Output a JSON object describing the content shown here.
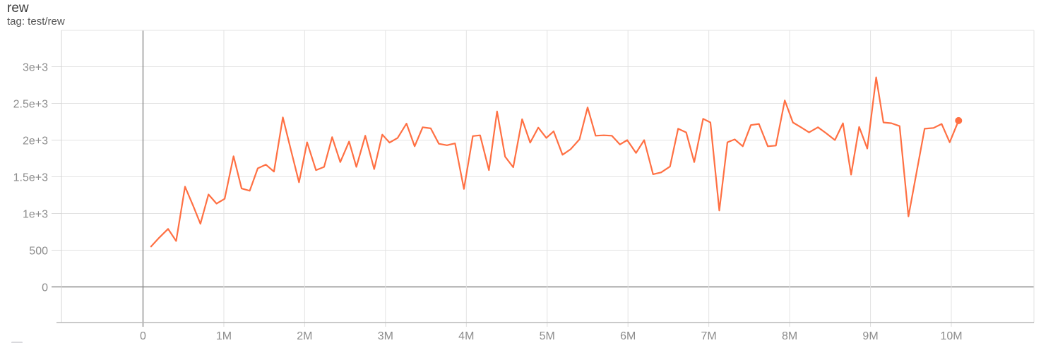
{
  "header": {
    "title": "rew",
    "subtitle": "tag: test/rew"
  },
  "colors": {
    "background": "#ffffff",
    "line": "#ff7043",
    "grid": "#e3e3e3",
    "tick_stub": "#dcdcdc",
    "zero_line": "#8a8a8a",
    "left_border": "#d4d4d4",
    "bottom_axis": "#b9b9b9",
    "tick_label": "#8c8c8c",
    "title_text": "#3b3b3b",
    "subtitle_text": "#565656"
  },
  "chart_data": {
    "type": "line",
    "title": "rew",
    "subtitle": "tag: test/rew",
    "xlabel": "",
    "ylabel": "",
    "x_unit": "steps (millions)",
    "x_ticks": [
      "0",
      "1M",
      "2M",
      "3M",
      "4M",
      "5M",
      "6M",
      "7M",
      "8M",
      "9M",
      "10M"
    ],
    "x_tick_values_M": [
      0,
      1,
      2,
      3,
      4,
      5,
      6,
      7,
      8,
      9,
      10
    ],
    "y_ticks": [
      "0",
      "500",
      "1e+3",
      "1.5e+3",
      "2e+3",
      "2.5e+3",
      "3e+3"
    ],
    "y_tick_values": [
      0,
      500,
      1000,
      1500,
      2000,
      2500,
      3000
    ],
    "xlim_M": [
      -1.01,
      11.02
    ],
    "ylim": [
      -485,
      3495
    ],
    "grid": true,
    "legend_position": "none",
    "end_marker": true,
    "final_point": {
      "step_M": 10.09,
      "value": 2265
    },
    "series": [
      {
        "name": "test/rew",
        "color": "#ff7043",
        "points_step_M_value": [
          [
            0.1,
            550
          ],
          [
            0.2,
            670
          ],
          [
            0.31,
            790
          ],
          [
            0.41,
            625
          ],
          [
            0.52,
            1365
          ],
          [
            0.62,
            1105
          ],
          [
            0.71,
            860
          ],
          [
            0.81,
            1260
          ],
          [
            0.91,
            1135
          ],
          [
            1.01,
            1200
          ],
          [
            1.12,
            1780
          ],
          [
            1.22,
            1340
          ],
          [
            1.32,
            1310
          ],
          [
            1.42,
            1615
          ],
          [
            1.52,
            1665
          ],
          [
            1.62,
            1570
          ],
          [
            1.73,
            2310
          ],
          [
            1.83,
            1865
          ],
          [
            1.93,
            1425
          ],
          [
            2.03,
            1970
          ],
          [
            2.14,
            1590
          ],
          [
            2.24,
            1635
          ],
          [
            2.34,
            2040
          ],
          [
            2.44,
            1700
          ],
          [
            2.55,
            1980
          ],
          [
            2.64,
            1635
          ],
          [
            2.75,
            2060
          ],
          [
            2.86,
            1605
          ],
          [
            2.96,
            2075
          ],
          [
            3.05,
            1965
          ],
          [
            3.15,
            2030
          ],
          [
            3.26,
            2225
          ],
          [
            3.36,
            1915
          ],
          [
            3.46,
            2175
          ],
          [
            3.56,
            2160
          ],
          [
            3.66,
            1950
          ],
          [
            3.76,
            1930
          ],
          [
            3.86,
            1955
          ],
          [
            3.97,
            1335
          ],
          [
            4.08,
            2055
          ],
          [
            4.17,
            2065
          ],
          [
            4.28,
            1590
          ],
          [
            4.38,
            2390
          ],
          [
            4.48,
            1775
          ],
          [
            4.58,
            1630
          ],
          [
            4.69,
            2285
          ],
          [
            4.79,
            1965
          ],
          [
            4.89,
            2170
          ],
          [
            4.99,
            2030
          ],
          [
            5.08,
            2120
          ],
          [
            5.19,
            1800
          ],
          [
            5.29,
            1875
          ],
          [
            5.4,
            2010
          ],
          [
            5.5,
            2445
          ],
          [
            5.6,
            2060
          ],
          [
            5.7,
            2065
          ],
          [
            5.8,
            2060
          ],
          [
            5.9,
            1940
          ],
          [
            5.99,
            2000
          ],
          [
            6.1,
            1825
          ],
          [
            6.2,
            2000
          ],
          [
            6.31,
            1535
          ],
          [
            6.41,
            1560
          ],
          [
            6.52,
            1640
          ],
          [
            6.62,
            2155
          ],
          [
            6.72,
            2105
          ],
          [
            6.82,
            1700
          ],
          [
            6.93,
            2290
          ],
          [
            7.02,
            2240
          ],
          [
            7.13,
            1040
          ],
          [
            7.23,
            1970
          ],
          [
            7.32,
            2010
          ],
          [
            7.42,
            1915
          ],
          [
            7.52,
            2205
          ],
          [
            7.62,
            2220
          ],
          [
            7.73,
            1915
          ],
          [
            7.83,
            1925
          ],
          [
            7.94,
            2540
          ],
          [
            8.04,
            2240
          ],
          [
            8.14,
            2175
          ],
          [
            8.24,
            2105
          ],
          [
            8.35,
            2175
          ],
          [
            8.45,
            2095
          ],
          [
            8.56,
            2000
          ],
          [
            8.66,
            2230
          ],
          [
            8.76,
            1530
          ],
          [
            8.86,
            2180
          ],
          [
            8.96,
            1885
          ],
          [
            9.07,
            2855
          ],
          [
            9.16,
            2240
          ],
          [
            9.26,
            2230
          ],
          [
            9.36,
            2190
          ],
          [
            9.47,
            960
          ],
          [
            9.57,
            1560
          ],
          [
            9.67,
            2155
          ],
          [
            9.78,
            2165
          ],
          [
            9.88,
            2220
          ],
          [
            9.98,
            1970
          ],
          [
            10.09,
            2265
          ]
        ]
      }
    ]
  }
}
